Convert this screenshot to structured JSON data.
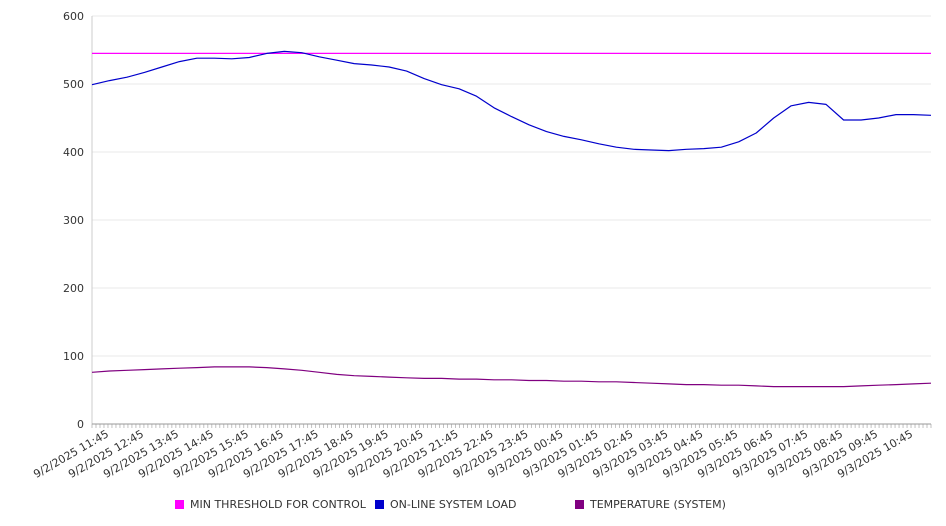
{
  "chart_data": {
    "type": "line",
    "title": "",
    "xlabel": "",
    "ylabel": "",
    "ylim": [
      0,
      600
    ],
    "yticks": [
      0,
      100,
      200,
      300,
      400,
      500,
      600
    ],
    "grid": true,
    "legend_position": "bottom",
    "x_tick_labels": [
      "9/2/2025 11:45",
      "9/2/2025 12:45",
      "9/2/2025 13:45",
      "9/2/2025 14:45",
      "9/2/2025 15:45",
      "9/2/2025 16:45",
      "9/2/2025 17:45",
      "9/2/2025 18:45",
      "9/2/2025 19:45",
      "9/2/2025 20:45",
      "9/2/2025 21:45",
      "9/2/2025 22:45",
      "9/2/2025 23:45",
      "9/3/2025 00:45",
      "9/3/2025 01:45",
      "9/3/2025 02:45",
      "9/3/2025 03:45",
      "9/3/2025 04:45",
      "9/3/2025 05:45",
      "9/3/2025 06:45",
      "9/3/2025 07:45",
      "9/3/2025 08:45",
      "9/3/2025 09:45",
      "9/3/2025 10:45"
    ],
    "x": [
      "9/2/2025 11:15",
      "9/2/2025 11:45",
      "9/2/2025 12:15",
      "9/2/2025 12:45",
      "9/2/2025 13:15",
      "9/2/2025 13:45",
      "9/2/2025 14:15",
      "9/2/2025 14:45",
      "9/2/2025 15:15",
      "9/2/2025 15:45",
      "9/2/2025 16:15",
      "9/2/2025 16:45",
      "9/2/2025 17:15",
      "9/2/2025 17:45",
      "9/2/2025 18:15",
      "9/2/2025 18:45",
      "9/2/2025 19:15",
      "9/2/2025 19:45",
      "9/2/2025 20:15",
      "9/2/2025 20:45",
      "9/2/2025 21:15",
      "9/2/2025 21:45",
      "9/2/2025 22:15",
      "9/2/2025 22:45",
      "9/2/2025 23:15",
      "9/2/2025 23:45",
      "9/3/2025 00:15",
      "9/3/2025 00:45",
      "9/3/2025 01:15",
      "9/3/2025 01:45",
      "9/3/2025 02:15",
      "9/3/2025 02:45",
      "9/3/2025 03:15",
      "9/3/2025 03:45",
      "9/3/2025 04:15",
      "9/3/2025 04:45",
      "9/3/2025 05:15",
      "9/3/2025 05:45",
      "9/3/2025 06:15",
      "9/3/2025 06:45",
      "9/3/2025 07:15",
      "9/3/2025 07:45",
      "9/3/2025 08:15",
      "9/3/2025 08:45",
      "9/3/2025 09:15",
      "9/3/2025 09:45",
      "9/3/2025 10:15",
      "9/3/2025 10:45",
      "9/3/2025 11:15"
    ],
    "series": [
      {
        "name": "MIN THRESHOLD FOR CONTROL",
        "color": "#ff00ff",
        "values": [
          545,
          545,
          545,
          545,
          545,
          545,
          545,
          545,
          545,
          545,
          545,
          545,
          545,
          545,
          545,
          545,
          545,
          545,
          545,
          545,
          545,
          545,
          545,
          545,
          545,
          545,
          545,
          545,
          545,
          545,
          545,
          545,
          545,
          545,
          545,
          545,
          545,
          545,
          545,
          545,
          545,
          545,
          545,
          545,
          545,
          545,
          545,
          545,
          545
        ]
      },
      {
        "name": "ON-LINE SYSTEM LOAD",
        "color": "#0000cc",
        "values": [
          499,
          505,
          510,
          517,
          525,
          533,
          538,
          538,
          537,
          539,
          545,
          548,
          546,
          540,
          535,
          530,
          528,
          525,
          519,
          508,
          499,
          493,
          482,
          465,
          452,
          440,
          430,
          423,
          418,
          412,
          407,
          404,
          403,
          402,
          404,
          405,
          407,
          415,
          428,
          450,
          468,
          473,
          470,
          447,
          447,
          450,
          455,
          455,
          454
        ]
      },
      {
        "name": "TEMPERATURE (SYSTEM)",
        "color": "#800080",
        "values": [
          76,
          78,
          79,
          80,
          81,
          82,
          83,
          84,
          84,
          84,
          83,
          81,
          79,
          76,
          73,
          71,
          70,
          69,
          68,
          67,
          67,
          66,
          66,
          65,
          65,
          64,
          64,
          63,
          63,
          62,
          62,
          61,
          60,
          59,
          58,
          58,
          57,
          57,
          56,
          55,
          55,
          55,
          55,
          55,
          56,
          57,
          58,
          59,
          60
        ]
      }
    ]
  }
}
